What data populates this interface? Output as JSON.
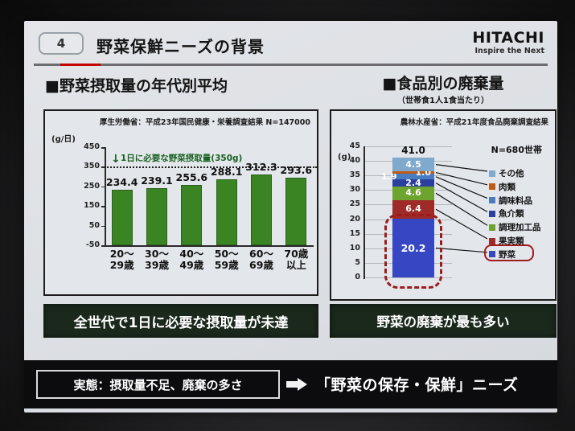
{
  "header": {
    "slide_number": "4",
    "title": "野菜保鮮ニーズの背景",
    "logo": "HITACHI",
    "logo_tagline": "Inspire the Next"
  },
  "left_section": {
    "title": "■野菜摂取量の年代別平均",
    "source": "厚生労働省：平成23年国民健康・栄養調査結果 N=147000",
    "conclusion": "全世代で1日に必要な摂取量が未達"
  },
  "right_section": {
    "title": "■食品別の廃棄量",
    "subtitle": "（世帯食1人1食当たり）",
    "source": "農林水産省：平成21年度食品廃棄調査結果",
    "sample": "N=680世帯",
    "conclusion": "野菜の廃棄が最も多い"
  },
  "footer": {
    "fact": "実態：摂取量不足、廃棄の多さ",
    "need": "「野菜の保存・保鮮」ニーズ"
  },
  "chart_data": [
    {
      "type": "bar",
      "title": "野菜摂取量の年代別平均",
      "ylabel": "(g/日)",
      "ylim": [
        -50,
        450
      ],
      "yticks": [
        450,
        350,
        250,
        150,
        50,
        -50
      ],
      "grid": false,
      "categories": [
        [
          "20～",
          "29歳"
        ],
        [
          "30～",
          "39歳"
        ],
        [
          "40～",
          "49歳"
        ],
        [
          "50～",
          "59歳"
        ],
        [
          "60～",
          "69歳"
        ],
        [
          "70歳",
          "以上"
        ]
      ],
      "values": [
        234.4,
        239.1,
        255.6,
        288.1,
        312.3,
        293.6
      ],
      "bar_color": "#3a8424",
      "reference_line": {
        "value": 350,
        "marker": "↓",
        "label": "1日に必要な野菜摂取量(350g)",
        "color": "#186022"
      }
    },
    {
      "type": "bar",
      "stacked": true,
      "title": "食品別の廃棄量（世帯食1人1食当たり）",
      "ylabel": "(g)",
      "ylim": [
        0,
        45
      ],
      "yticks": [
        45,
        40,
        35,
        30,
        25,
        20,
        15,
        10,
        5,
        0
      ],
      "grid": true,
      "legend_position": "right",
      "total_label": "41.0",
      "sample_label": "N=680世帯",
      "segments_top_to_bottom": [
        {
          "label": "その他",
          "value": 4.5,
          "color": "#7fa9cd",
          "text_align": "center"
        },
        {
          "label": "肉類",
          "value": 1.0,
          "color": "#c05a14",
          "text_align": "right"
        },
        {
          "label": "調味料品",
          "value": 1.9,
          "color": "#4a7cc0",
          "text_align": "left"
        },
        {
          "label": "魚介類",
          "value": 2.4,
          "color": "#2b3f9e",
          "text_align": "center"
        },
        {
          "label": "調理加工品",
          "value": 4.6,
          "color": "#6da32f",
          "text_align": "center"
        },
        {
          "label": "果実類",
          "value": 6.4,
          "color": "#9e2b28",
          "text_align": "center"
        },
        {
          "label": "野菜",
          "value": 20.2,
          "color": "#3747c3",
          "text_align": "center",
          "highlighted": true
        }
      ],
      "highlight_color": "#9c1c1c"
    }
  ]
}
